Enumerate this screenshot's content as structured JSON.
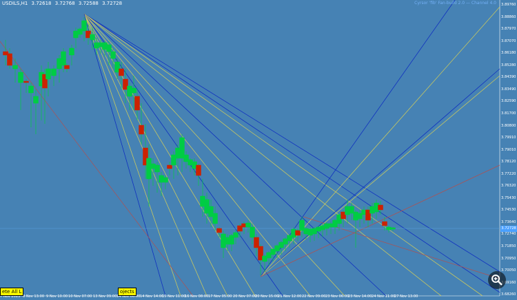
{
  "header": {
    "symbol": "USDILS,H1",
    "ohlc": [
      "3.72618",
      "3.72768",
      "3.72588",
      "3.72728"
    ],
    "top_right_text": "Cyrsor 'fib' Fan-build 2.0 — Channel 4.0"
  },
  "price_axis": {
    "labels": [
      "3.89760",
      "3.88860",
      "3.87970",
      "3.87070",
      "3.86180",
      "3.85280",
      "3.84390",
      "3.83490",
      "3.82590",
      "3.81700",
      "3.80800",
      "3.79910",
      "3.79010",
      "3.78120",
      "3.77220",
      "3.76320",
      "3.75430",
      "3.74530",
      "3.73640",
      "3.72740",
      "3.71850",
      "3.70950",
      "3.70050",
      "3.69160",
      "3.68260"
    ],
    "current_price": "3.72728"
  },
  "time_axis": {
    "labels": [
      "7 Nov 2023",
      "8 Nov 13:00",
      "9 Nov 10:00",
      "10 Nov 07:00",
      "13 Nov 09:00",
      "14 Nov 06:00",
      "14 Nov 14:00",
      "15 Nov 11:00",
      "16 Nov 08:00",
      "17 Nov 05:00",
      "20 Nov 07:00",
      "20 Nov 15:00",
      "21 Nov 12:00",
      "22 Nov 09:00",
      "23 Nov 06:00",
      "23 Nov 14:00",
      "24 Nov 11:00",
      "27 Nov 13:00"
    ]
  },
  "buttons": {
    "delete_all": "ete All L",
    "objects": "ojects"
  },
  "colors": {
    "background": "#4682b4",
    "bull": "#00cc44",
    "bear": "#cc2200",
    "fan_blue": "#1030c0",
    "fan_yellow": "#c8c860",
    "fan_red": "#b05050",
    "button": "#ffff00"
  },
  "icons": {
    "zoom": "magnifier-zoom-icon"
  },
  "chart_data": {
    "type": "candlestick",
    "y_range": [
      3.6826,
      3.8976
    ],
    "current_price": 3.72728
  }
}
